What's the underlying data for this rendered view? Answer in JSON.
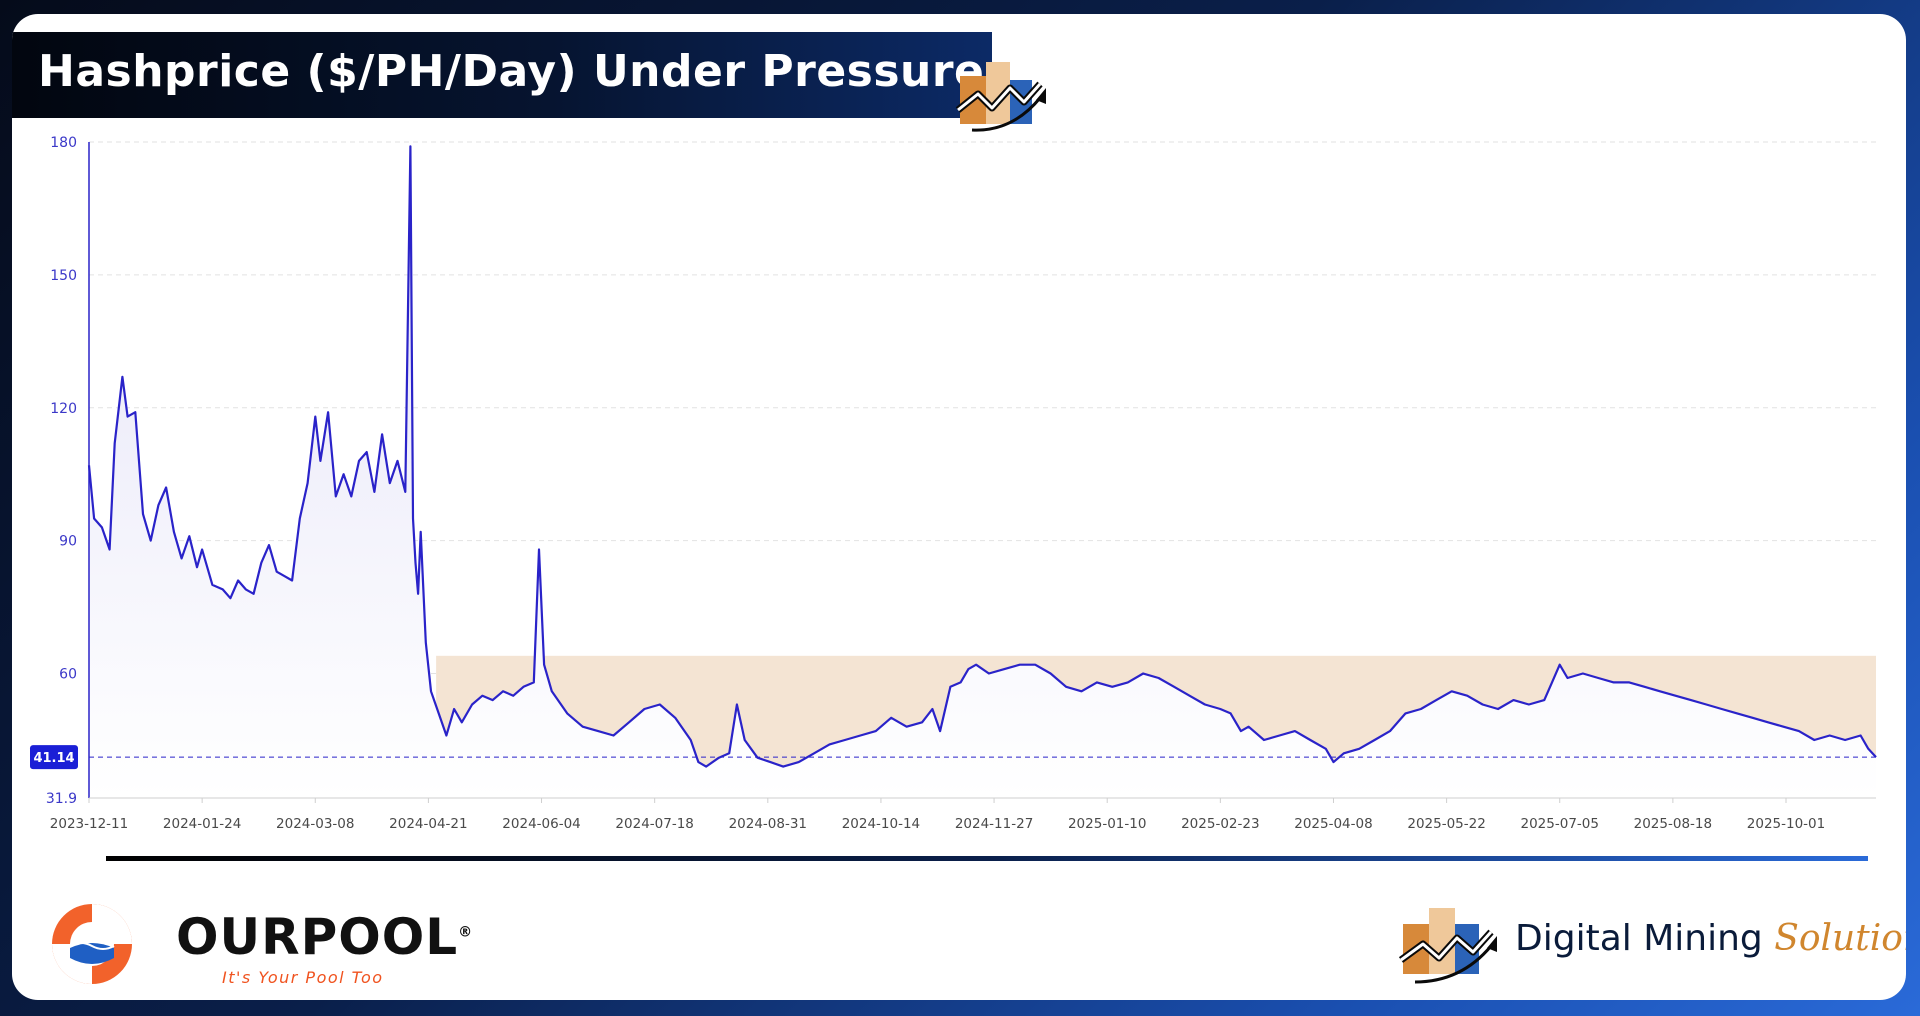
{
  "title": "Hashprice ($/PH/Day) Under Pressure",
  "colors": {
    "line": "#2a23c9",
    "area_top": "#e4e3f7",
    "band_fill": "#f4e4d3",
    "grid": "#e2e2e2",
    "axis_text": "#3b38c8",
    "badge": "#1a1fd6"
  },
  "chart_data": {
    "type": "line",
    "title": "Hashprice ($/PH/Day) Under Pressure",
    "xlabel": "",
    "ylabel": "",
    "ylim": [
      31.9,
      180
    ],
    "y_ticks": [
      "180",
      "150",
      "120",
      "90",
      "60",
      "31.9"
    ],
    "x_tick_labels": [
      "2023-12-11",
      "2024-01-24",
      "2024-03-08",
      "2024-04-21",
      "2024-06-04",
      "2024-07-18",
      "2024-08-31",
      "2024-10-14",
      "2024-11-27",
      "2025-01-10",
      "2025-02-23",
      "2025-04-08",
      "2025-05-22",
      "2025-07-05",
      "2025-08-18",
      "2025-10-01"
    ],
    "x_start": "2023-12-11",
    "x_end": "2025-11-05",
    "current_value": "41.14",
    "current_value_num": 41.14,
    "shaded_band": {
      "start": "2024-04-24",
      "end": "2025-11-05",
      "y_low": 38,
      "y_high": 64
    },
    "series": [
      {
        "name": "Hashprice",
        "points": [
          [
            "2023-12-11",
            107
          ],
          [
            "2023-12-13",
            95
          ],
          [
            "2023-12-16",
            93
          ],
          [
            "2023-12-19",
            88
          ],
          [
            "2023-12-21",
            112
          ],
          [
            "2023-12-24",
            127
          ],
          [
            "2023-12-26",
            118
          ],
          [
            "2023-12-29",
            119
          ],
          [
            "2024-01-01",
            96
          ],
          [
            "2024-01-04",
            90
          ],
          [
            "2024-01-07",
            98
          ],
          [
            "2024-01-10",
            102
          ],
          [
            "2024-01-13",
            92
          ],
          [
            "2024-01-16",
            86
          ],
          [
            "2024-01-19",
            91
          ],
          [
            "2024-01-22",
            84
          ],
          [
            "2024-01-24",
            88
          ],
          [
            "2024-01-28",
            80
          ],
          [
            "2024-02-01",
            79
          ],
          [
            "2024-02-04",
            77
          ],
          [
            "2024-02-07",
            81
          ],
          [
            "2024-02-10",
            79
          ],
          [
            "2024-02-13",
            78
          ],
          [
            "2024-02-16",
            85
          ],
          [
            "2024-02-19",
            89
          ],
          [
            "2024-02-22",
            83
          ],
          [
            "2024-02-25",
            82
          ],
          [
            "2024-02-28",
            81
          ],
          [
            "2024-03-02",
            95
          ],
          [
            "2024-03-05",
            103
          ],
          [
            "2024-03-08",
            118
          ],
          [
            "2024-03-10",
            108
          ],
          [
            "2024-03-13",
            119
          ],
          [
            "2024-03-16",
            100
          ],
          [
            "2024-03-19",
            105
          ],
          [
            "2024-03-22",
            100
          ],
          [
            "2024-03-25",
            108
          ],
          [
            "2024-03-28",
            110
          ],
          [
            "2024-03-31",
            101
          ],
          [
            "2024-04-03",
            114
          ],
          [
            "2024-04-06",
            103
          ],
          [
            "2024-04-09",
            108
          ],
          [
            "2024-04-12",
            101
          ],
          [
            "2024-04-14",
            179
          ],
          [
            "2024-04-15",
            95
          ],
          [
            "2024-04-16",
            85
          ],
          [
            "2024-04-17",
            78
          ],
          [
            "2024-04-18",
            92
          ],
          [
            "2024-04-20",
            67
          ],
          [
            "2024-04-22",
            56
          ],
          [
            "2024-04-25",
            51
          ],
          [
            "2024-04-28",
            46
          ],
          [
            "2024-05-01",
            52
          ],
          [
            "2024-05-04",
            49
          ],
          [
            "2024-05-08",
            53
          ],
          [
            "2024-05-12",
            55
          ],
          [
            "2024-05-16",
            54
          ],
          [
            "2024-05-20",
            56
          ],
          [
            "2024-05-24",
            55
          ],
          [
            "2024-05-28",
            57
          ],
          [
            "2024-06-01",
            58
          ],
          [
            "2024-06-03",
            88
          ],
          [
            "2024-06-05",
            62
          ],
          [
            "2024-06-08",
            56
          ],
          [
            "2024-06-14",
            51
          ],
          [
            "2024-06-20",
            48
          ],
          [
            "2024-06-26",
            47
          ],
          [
            "2024-07-02",
            46
          ],
          [
            "2024-07-08",
            49
          ],
          [
            "2024-07-14",
            52
          ],
          [
            "2024-07-20",
            53
          ],
          [
            "2024-07-26",
            50
          ],
          [
            "2024-08-01",
            45
          ],
          [
            "2024-08-04",
            40
          ],
          [
            "2024-08-07",
            39
          ],
          [
            "2024-08-12",
            41
          ],
          [
            "2024-08-16",
            42
          ],
          [
            "2024-08-19",
            53
          ],
          [
            "2024-08-22",
            45
          ],
          [
            "2024-08-27",
            41
          ],
          [
            "2024-09-01",
            40
          ],
          [
            "2024-09-06",
            39
          ],
          [
            "2024-09-12",
            40
          ],
          [
            "2024-09-18",
            42
          ],
          [
            "2024-09-24",
            44
          ],
          [
            "2024-09-30",
            45
          ],
          [
            "2024-10-06",
            46
          ],
          [
            "2024-10-12",
            47
          ],
          [
            "2024-10-18",
            50
          ],
          [
            "2024-10-24",
            48
          ],
          [
            "2024-10-30",
            49
          ],
          [
            "2024-11-03",
            52
          ],
          [
            "2024-11-06",
            47
          ],
          [
            "2024-11-10",
            57
          ],
          [
            "2024-11-14",
            58
          ],
          [
            "2024-11-17",
            61
          ],
          [
            "2024-11-20",
            62
          ],
          [
            "2024-11-25",
            60
          ],
          [
            "2024-12-01",
            61
          ],
          [
            "2024-12-07",
            62
          ],
          [
            "2024-12-13",
            62
          ],
          [
            "2024-12-19",
            60
          ],
          [
            "2024-12-25",
            57
          ],
          [
            "2024-12-31",
            56
          ],
          [
            "2025-01-06",
            58
          ],
          [
            "2025-01-12",
            57
          ],
          [
            "2025-01-18",
            58
          ],
          [
            "2025-01-24",
            60
          ],
          [
            "2025-01-30",
            59
          ],
          [
            "2025-02-05",
            57
          ],
          [
            "2025-02-11",
            55
          ],
          [
            "2025-02-17",
            53
          ],
          [
            "2025-02-23",
            52
          ],
          [
            "2025-02-27",
            51
          ],
          [
            "2025-03-03",
            47
          ],
          [
            "2025-03-06",
            48
          ],
          [
            "2025-03-12",
            45
          ],
          [
            "2025-03-18",
            46
          ],
          [
            "2025-03-24",
            47
          ],
          [
            "2025-03-30",
            45
          ],
          [
            "2025-04-05",
            43
          ],
          [
            "2025-04-08",
            40
          ],
          [
            "2025-04-12",
            42
          ],
          [
            "2025-04-18",
            43
          ],
          [
            "2025-04-24",
            45
          ],
          [
            "2025-04-30",
            47
          ],
          [
            "2025-05-06",
            51
          ],
          [
            "2025-05-12",
            52
          ],
          [
            "2025-05-18",
            54
          ],
          [
            "2025-05-24",
            56
          ],
          [
            "2025-05-30",
            55
          ],
          [
            "2025-06-05",
            53
          ],
          [
            "2025-06-11",
            52
          ],
          [
            "2025-06-17",
            54
          ],
          [
            "2025-06-23",
            53
          ],
          [
            "2025-06-29",
            54
          ],
          [
            "2025-07-02",
            58
          ],
          [
            "2025-07-05",
            62
          ],
          [
            "2025-07-08",
            59
          ],
          [
            "2025-07-14",
            60
          ],
          [
            "2025-07-20",
            59
          ],
          [
            "2025-07-26",
            58
          ],
          [
            "2025-08-01",
            58
          ],
          [
            "2025-08-07",
            57
          ],
          [
            "2025-08-13",
            56
          ],
          [
            "2025-08-19",
            55
          ],
          [
            "2025-08-25",
            54
          ],
          [
            "2025-08-31",
            53
          ],
          [
            "2025-09-06",
            52
          ],
          [
            "2025-09-12",
            51
          ],
          [
            "2025-09-18",
            50
          ],
          [
            "2025-09-24",
            49
          ],
          [
            "2025-09-30",
            48
          ],
          [
            "2025-10-06",
            47
          ],
          [
            "2025-10-12",
            45
          ],
          [
            "2025-10-18",
            46
          ],
          [
            "2025-10-24",
            45
          ],
          [
            "2025-10-30",
            46
          ],
          [
            "2025-11-02",
            43
          ],
          [
            "2025-11-05",
            41.14
          ]
        ]
      }
    ]
  },
  "footer": {
    "ourpool_name": "OURPOOL",
    "ourpool_reg": "®",
    "ourpool_tagline": "It's Your Pool Too",
    "dms_name_plain": "Digital Mining",
    "dms_name_italic": "Solutions"
  }
}
